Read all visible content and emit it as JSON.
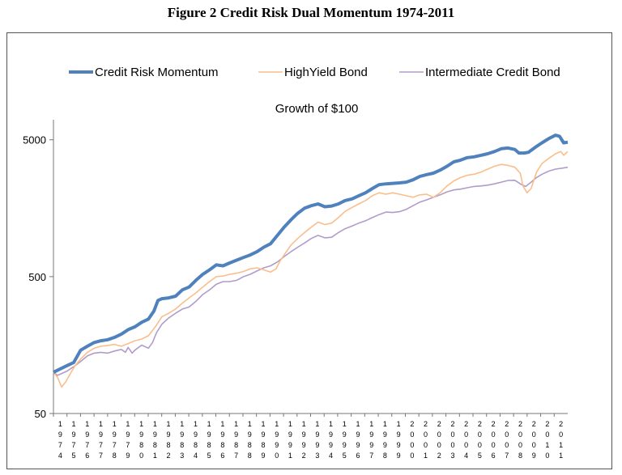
{
  "figure_title": "Figure 2 Credit Risk Dual Momentum 1974-2011",
  "chart_data": {
    "type": "line",
    "title": "Growth of $100",
    "y_scale": "log",
    "ylim": [
      50,
      7000
    ],
    "yticks": [
      {
        "value": 5000,
        "label": "5000"
      },
      {
        "value": 500,
        "label": "500"
      },
      {
        "value": 50,
        "label": "50"
      }
    ],
    "xlim": [
      1974,
      2011.9
    ],
    "x_tick_labels": [
      "1974",
      "1975",
      "1976",
      "1977",
      "1978",
      "1979",
      "1980",
      "1981",
      "1982",
      "1983",
      "1984",
      "1985",
      "1986",
      "1987",
      "1988",
      "1989",
      "1990",
      "1991",
      "1992",
      "1993",
      "1994",
      "1995",
      "1996",
      "1997",
      "1998",
      "1999",
      "2000",
      "2001",
      "2002",
      "2003",
      "2004",
      "2005",
      "2006",
      "2007",
      "2008",
      "2009",
      "2010",
      "2011"
    ],
    "legend_position": "top",
    "series": [
      {
        "name": "Credit Risk Momentum",
        "color": "#4f81bd",
        "points": [
          [
            1974,
            100
          ],
          [
            1974.6,
            107
          ],
          [
            1975,
            112
          ],
          [
            1975.5,
            118
          ],
          [
            1976,
            145
          ],
          [
            1976.5,
            155
          ],
          [
            1977,
            165
          ],
          [
            1977.5,
            170
          ],
          [
            1978,
            173
          ],
          [
            1978.5,
            180
          ],
          [
            1979,
            190
          ],
          [
            1979.5,
            205
          ],
          [
            1980,
            215
          ],
          [
            1980.5,
            232
          ],
          [
            1981,
            245
          ],
          [
            1981.4,
            280
          ],
          [
            1981.7,
            335
          ],
          [
            1982,
            345
          ],
          [
            1982.5,
            350
          ],
          [
            1983,
            360
          ],
          [
            1983.5,
            400
          ],
          [
            1984,
            420
          ],
          [
            1984.5,
            470
          ],
          [
            1985,
            520
          ],
          [
            1985.5,
            560
          ],
          [
            1986,
            610
          ],
          [
            1986.5,
            600
          ],
          [
            1987,
            630
          ],
          [
            1987.5,
            660
          ],
          [
            1988,
            690
          ],
          [
            1988.5,
            720
          ],
          [
            1989,
            760
          ],
          [
            1989.5,
            820
          ],
          [
            1990,
            870
          ],
          [
            1990.5,
            1000
          ],
          [
            1991,
            1150
          ],
          [
            1991.5,
            1300
          ],
          [
            1992,
            1450
          ],
          [
            1992.5,
            1580
          ],
          [
            1993,
            1650
          ],
          [
            1993.5,
            1700
          ],
          [
            1994,
            1620
          ],
          [
            1994.5,
            1640
          ],
          [
            1995,
            1700
          ],
          [
            1995.5,
            1800
          ],
          [
            1996,
            1850
          ],
          [
            1996.5,
            1950
          ],
          [
            1997,
            2050
          ],
          [
            1997.5,
            2200
          ],
          [
            1998,
            2350
          ],
          [
            1998.5,
            2380
          ],
          [
            1999,
            2400
          ],
          [
            1999.5,
            2420
          ],
          [
            2000,
            2450
          ],
          [
            2000.5,
            2550
          ],
          [
            2001,
            2700
          ],
          [
            2001.5,
            2780
          ],
          [
            2002,
            2850
          ],
          [
            2002.5,
            3000
          ],
          [
            2003,
            3200
          ],
          [
            2003.5,
            3450
          ],
          [
            2004,
            3550
          ],
          [
            2004.5,
            3700
          ],
          [
            2005,
            3750
          ],
          [
            2005.5,
            3850
          ],
          [
            2006,
            3950
          ],
          [
            2006.5,
            4100
          ],
          [
            2007,
            4300
          ],
          [
            2007.5,
            4350
          ],
          [
            2008,
            4250
          ],
          [
            2008.3,
            4000
          ],
          [
            2008.7,
            4000
          ],
          [
            2009,
            4050
          ],
          [
            2009.5,
            4400
          ],
          [
            2010,
            4750
          ],
          [
            2010.5,
            5100
          ],
          [
            2011,
            5400
          ],
          [
            2011.3,
            5300
          ],
          [
            2011.6,
            4750
          ],
          [
            2011.9,
            4800
          ]
        ]
      },
      {
        "name": "HighYield Bond",
        "color": "#f9be8c",
        "points": [
          [
            1974,
            100
          ],
          [
            1974.3,
            92
          ],
          [
            1974.6,
            78
          ],
          [
            1974.9,
            85
          ],
          [
            1975.3,
            100
          ],
          [
            1975.6,
            112
          ],
          [
            1976,
            125
          ],
          [
            1976.5,
            140
          ],
          [
            1977,
            150
          ],
          [
            1977.5,
            155
          ],
          [
            1978,
            157
          ],
          [
            1978.5,
            160
          ],
          [
            1979,
            155
          ],
          [
            1979.5,
            162
          ],
          [
            1980,
            170
          ],
          [
            1980.5,
            175
          ],
          [
            1981,
            185
          ],
          [
            1981.5,
            215
          ],
          [
            1982,
            255
          ],
          [
            1982.5,
            270
          ],
          [
            1983,
            290
          ],
          [
            1983.5,
            320
          ],
          [
            1984,
            350
          ],
          [
            1984.5,
            380
          ],
          [
            1985,
            420
          ],
          [
            1985.5,
            460
          ],
          [
            1986,
            500
          ],
          [
            1986.5,
            505
          ],
          [
            1987,
            520
          ],
          [
            1987.5,
            530
          ],
          [
            1988,
            545
          ],
          [
            1988.5,
            570
          ],
          [
            1989,
            580
          ],
          [
            1989.5,
            560
          ],
          [
            1990,
            540
          ],
          [
            1990.4,
            570
          ],
          [
            1990.7,
            650
          ],
          [
            1991,
            720
          ],
          [
            1991.5,
            850
          ],
          [
            1992,
            950
          ],
          [
            1992.5,
            1050
          ],
          [
            1993,
            1150
          ],
          [
            1993.5,
            1250
          ],
          [
            1994,
            1200
          ],
          [
            1994.5,
            1230
          ],
          [
            1995,
            1350
          ],
          [
            1995.5,
            1500
          ],
          [
            1996,
            1600
          ],
          [
            1996.5,
            1700
          ],
          [
            1997,
            1800
          ],
          [
            1997.5,
            1950
          ],
          [
            1998,
            2050
          ],
          [
            1998.5,
            2000
          ],
          [
            1999,
            2050
          ],
          [
            1999.5,
            2000
          ],
          [
            2000,
            1950
          ],
          [
            2000.5,
            1900
          ],
          [
            2001,
            1980
          ],
          [
            2001.5,
            2000
          ],
          [
            2002,
            1900
          ],
          [
            2002.5,
            2050
          ],
          [
            2003,
            2300
          ],
          [
            2003.5,
            2500
          ],
          [
            2004,
            2650
          ],
          [
            2004.5,
            2750
          ],
          [
            2005,
            2800
          ],
          [
            2005.5,
            2900
          ],
          [
            2006,
            3050
          ],
          [
            2006.5,
            3200
          ],
          [
            2007,
            3300
          ],
          [
            2007.5,
            3250
          ],
          [
            2008,
            3150
          ],
          [
            2008.4,
            2850
          ],
          [
            2008.6,
            2300
          ],
          [
            2008.9,
            2050
          ],
          [
            2009.2,
            2200
          ],
          [
            2009.6,
            2900
          ],
          [
            2010,
            3350
          ],
          [
            2010.5,
            3650
          ],
          [
            2011,
            3950
          ],
          [
            2011.4,
            4100
          ],
          [
            2011.6,
            3850
          ],
          [
            2011.9,
            4100
          ]
        ]
      },
      {
        "name": "Intermediate Credit Bond",
        "color": "#b19cc9",
        "points": [
          [
            1974,
            100
          ],
          [
            1974.3,
            95
          ],
          [
            1974.6,
            98
          ],
          [
            1975,
            102
          ],
          [
            1975.5,
            110
          ],
          [
            1976,
            120
          ],
          [
            1976.5,
            132
          ],
          [
            1977,
            138
          ],
          [
            1977.5,
            140
          ],
          [
            1978,
            138
          ],
          [
            1978.5,
            143
          ],
          [
            1979,
            147
          ],
          [
            1979.3,
            140
          ],
          [
            1979.5,
            152
          ],
          [
            1979.8,
            138
          ],
          [
            1980,
            145
          ],
          [
            1980.5,
            158
          ],
          [
            1981,
            150
          ],
          [
            1981.3,
            165
          ],
          [
            1981.6,
            195
          ],
          [
            1982,
            225
          ],
          [
            1982.5,
            250
          ],
          [
            1983,
            270
          ],
          [
            1983.5,
            290
          ],
          [
            1984,
            300
          ],
          [
            1984.5,
            330
          ],
          [
            1985,
            370
          ],
          [
            1985.5,
            400
          ],
          [
            1986,
            440
          ],
          [
            1986.5,
            460
          ],
          [
            1987,
            460
          ],
          [
            1987.5,
            470
          ],
          [
            1988,
            500
          ],
          [
            1988.5,
            520
          ],
          [
            1989,
            550
          ],
          [
            1989.5,
            580
          ],
          [
            1990,
            600
          ],
          [
            1990.5,
            640
          ],
          [
            1991,
            700
          ],
          [
            1991.5,
            760
          ],
          [
            1992,
            820
          ],
          [
            1992.5,
            880
          ],
          [
            1993,
            950
          ],
          [
            1993.5,
            1000
          ],
          [
            1994,
            960
          ],
          [
            1994.5,
            970
          ],
          [
            1995,
            1050
          ],
          [
            1995.5,
            1120
          ],
          [
            1996,
            1170
          ],
          [
            1996.5,
            1230
          ],
          [
            1997,
            1280
          ],
          [
            1997.5,
            1350
          ],
          [
            1998,
            1420
          ],
          [
            1998.5,
            1480
          ],
          [
            1999,
            1470
          ],
          [
            1999.5,
            1490
          ],
          [
            2000,
            1550
          ],
          [
            2000.5,
            1650
          ],
          [
            2001,
            1750
          ],
          [
            2001.5,
            1820
          ],
          [
            2002,
            1900
          ],
          [
            2002.5,
            1980
          ],
          [
            2003,
            2080
          ],
          [
            2003.5,
            2150
          ],
          [
            2004,
            2180
          ],
          [
            2004.5,
            2230
          ],
          [
            2005,
            2280
          ],
          [
            2005.5,
            2300
          ],
          [
            2006,
            2330
          ],
          [
            2006.5,
            2380
          ],
          [
            2007,
            2450
          ],
          [
            2007.5,
            2520
          ],
          [
            2008,
            2530
          ],
          [
            2008.5,
            2350
          ],
          [
            2008.8,
            2280
          ],
          [
            2009.2,
            2450
          ],
          [
            2009.6,
            2650
          ],
          [
            2010,
            2800
          ],
          [
            2010.5,
            2950
          ],
          [
            2011,
            3050
          ],
          [
            2011.5,
            3100
          ],
          [
            2011.9,
            3150
          ]
        ]
      }
    ]
  }
}
